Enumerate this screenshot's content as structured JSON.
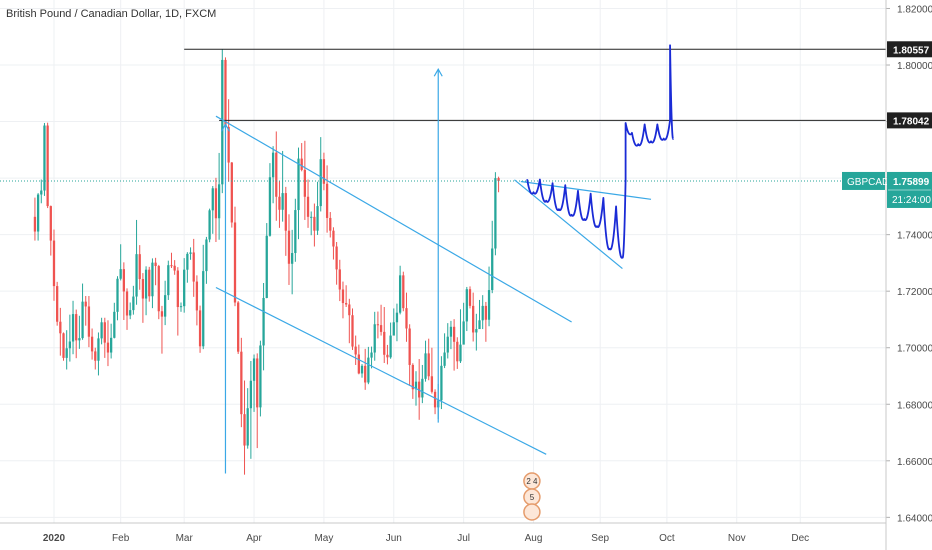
{
  "colors": {
    "background": "#ffffff",
    "grid": "#eef0f3",
    "up": "#26a69a",
    "down": "#ef5350",
    "trendline": "#3aa8e6",
    "projection": "#1a2bd6",
    "level_line": "#222222",
    "axis_text": "#4a4a4a",
    "symbol_badge": "#26a69a",
    "level_badge": "#202020"
  },
  "chart_data": {
    "type": "candlestick",
    "title": "British Pound / Canadian Dollar, 1D, FXCM",
    "y_ticks": [
      1.64,
      1.66,
      1.68,
      1.7,
      1.72,
      1.74,
      1.76,
      1.78,
      1.8,
      1.82
    ],
    "y_tick_labels": [
      "1.64000",
      "1.66000",
      "1.68000",
      "1.70000",
      "1.72000",
      "1.74000",
      "1.76000",
      "1.78000",
      "1.80000",
      "1.82000"
    ],
    "x_tick_labels": [
      "2020",
      "Feb",
      "Mar",
      "Apr",
      "May",
      "Jun",
      "Jul",
      "Aug",
      "Sep",
      "Oct",
      "Nov",
      "Dec"
    ],
    "x_tick_index": [
      6,
      27,
      47,
      69,
      91,
      113,
      135,
      157,
      178,
      199,
      221,
      241
    ],
    "ylim": [
      1.638,
      1.823
    ],
    "x_range": [
      -11,
      268
    ],
    "grid": true,
    "candles": [
      [
        1.7463,
        1.7411,
        1.7531,
        1.7379
      ],
      [
        1.7411,
        1.7542,
        1.7547,
        1.7379
      ],
      [
        1.7542,
        1.7556,
        1.7595,
        1.7511
      ],
      [
        1.7556,
        1.7786,
        1.7795,
        1.7537
      ],
      [
        1.7786,
        1.7501,
        1.7796,
        1.7494
      ],
      [
        1.7501,
        1.7379,
        1.7503,
        1.7326
      ],
      [
        1.7379,
        1.7218,
        1.7418,
        1.7166
      ],
      [
        1.7218,
        1.7092,
        1.7233,
        1.7078
      ],
      [
        1.7092,
        1.7051,
        1.7141,
        1.6972
      ],
      [
        1.7051,
        1.6964,
        1.7054,
        1.6954
      ],
      [
        1.6964,
        1.6998,
        1.7062,
        1.6923
      ],
      [
        1.6998,
        1.7022,
        1.7117,
        1.6951
      ],
      [
        1.7022,
        1.7119,
        1.7166,
        1.6977
      ],
      [
        1.7119,
        1.7026,
        1.7135,
        1.6963
      ],
      [
        1.7026,
        1.7034,
        1.7113,
        1.6996
      ],
      [
        1.7034,
        1.7163,
        1.7227,
        1.7028
      ],
      [
        1.7163,
        1.7146,
        1.7183,
        1.7078
      ],
      [
        1.7146,
        1.7039,
        1.7183,
        1.7002
      ],
      [
        1.7039,
        1.6987,
        1.7068,
        1.6958
      ],
      [
        1.6987,
        1.6954,
        1.7,
        1.6923
      ],
      [
        1.6954,
        1.7033,
        1.7054,
        1.6902
      ],
      [
        1.7033,
        1.709,
        1.7106,
        1.7012
      ],
      [
        1.709,
        1.7018,
        1.7106,
        1.6964
      ],
      [
        1.7018,
        1.6983,
        1.7097,
        1.6935
      ],
      [
        1.6983,
        1.7035,
        1.7085,
        1.6962
      ],
      [
        1.7035,
        1.7127,
        1.7159,
        1.7033
      ],
      [
        1.7127,
        1.7244,
        1.7253,
        1.7097
      ],
      [
        1.7244,
        1.7278,
        1.7366,
        1.7238
      ],
      [
        1.7278,
        1.7199,
        1.7302,
        1.7098
      ],
      [
        1.7199,
        1.7114,
        1.721,
        1.7063
      ],
      [
        1.7114,
        1.7133,
        1.716,
        1.7101
      ],
      [
        1.7133,
        1.7181,
        1.7219,
        1.7117
      ],
      [
        1.7181,
        1.7331,
        1.7452,
        1.7152
      ],
      [
        1.7331,
        1.7243,
        1.7363,
        1.7205
      ],
      [
        1.7243,
        1.7174,
        1.7264,
        1.7088
      ],
      [
        1.7174,
        1.7276,
        1.7288,
        1.7115
      ],
      [
        1.7276,
        1.7182,
        1.7286,
        1.7163
      ],
      [
        1.7182,
        1.7301,
        1.7316,
        1.714
      ],
      [
        1.7301,
        1.7289,
        1.7318,
        1.7221
      ],
      [
        1.7289,
        1.7129,
        1.7293,
        1.7101
      ],
      [
        1.7129,
        1.711,
        1.7148,
        1.6979
      ],
      [
        1.711,
        1.7186,
        1.7237,
        1.708
      ],
      [
        1.7186,
        1.7292,
        1.7308,
        1.7169
      ],
      [
        1.7292,
        1.729,
        1.7336,
        1.7282
      ],
      [
        1.729,
        1.7273,
        1.731,
        1.7258
      ],
      [
        1.7273,
        1.7144,
        1.7285,
        1.7043
      ],
      [
        1.7144,
        1.7147,
        1.716,
        1.7127
      ],
      [
        1.7147,
        1.7276,
        1.7317,
        1.7124
      ],
      [
        1.7276,
        1.7332,
        1.7338,
        1.723
      ],
      [
        1.7332,
        1.7337,
        1.7355,
        1.7311
      ],
      [
        1.7337,
        1.7234,
        1.7385,
        1.718
      ],
      [
        1.7234,
        1.7132,
        1.7256,
        1.7079
      ],
      [
        1.7132,
        1.7005,
        1.7149,
        1.6982
      ],
      [
        1.7005,
        1.7271,
        1.7364,
        1.6995
      ],
      [
        1.7271,
        1.7383,
        1.7392,
        1.7226
      ],
      [
        1.7383,
        1.7486,
        1.7492,
        1.7373
      ],
      [
        1.7486,
        1.7564,
        1.7572,
        1.7403
      ],
      [
        1.7564,
        1.7458,
        1.7601,
        1.7374
      ],
      [
        1.7458,
        1.7578,
        1.7689,
        1.7382
      ],
      [
        1.7578,
        1.8018,
        1.8055,
        1.7547
      ],
      [
        1.8018,
        1.7781,
        1.8027,
        1.7752
      ],
      [
        1.7781,
        1.7655,
        1.7879,
        1.7587
      ],
      [
        1.7655,
        1.7443,
        1.7657,
        1.7425
      ],
      [
        1.7443,
        1.716,
        1.7499,
        1.7147
      ],
      [
        1.716,
        1.6986,
        1.7165,
        1.6978
      ],
      [
        1.6986,
        1.6765,
        1.7035,
        1.6719
      ],
      [
        1.6765,
        1.6654,
        1.6884,
        1.6551
      ],
      [
        1.6654,
        1.6786,
        1.6857,
        1.6643
      ],
      [
        1.6786,
        1.6883,
        1.6953,
        1.6607
      ],
      [
        1.6883,
        1.6962,
        1.6976,
        1.6773
      ],
      [
        1.6962,
        1.6789,
        1.698,
        1.6645
      ],
      [
        1.6789,
        1.7008,
        1.7025,
        1.6757
      ],
      [
        1.7008,
        1.7176,
        1.7229,
        1.692
      ],
      [
        1.7176,
        1.7396,
        1.7441,
        1.7175
      ],
      [
        1.7396,
        1.7603,
        1.7653,
        1.7393
      ],
      [
        1.7603,
        1.769,
        1.7713,
        1.7511
      ],
      [
        1.769,
        1.7534,
        1.7765,
        1.7449
      ],
      [
        1.7534,
        1.7488,
        1.7588,
        1.7424
      ],
      [
        1.7488,
        1.7547,
        1.7696,
        1.7446
      ],
      [
        1.7547,
        1.7414,
        1.7569,
        1.7325
      ],
      [
        1.7414,
        1.7297,
        1.7472,
        1.7222
      ],
      [
        1.7297,
        1.7335,
        1.7417,
        1.7189
      ],
      [
        1.7335,
        1.7487,
        1.7527,
        1.7304
      ],
      [
        1.7487,
        1.7669,
        1.7708,
        1.7384
      ],
      [
        1.7669,
        1.7629,
        1.7724,
        1.7624
      ],
      [
        1.7629,
        1.7534,
        1.7732,
        1.7452
      ],
      [
        1.7534,
        1.7463,
        1.7595,
        1.7424
      ],
      [
        1.7463,
        1.7463,
        1.7482,
        1.7398
      ],
      [
        1.7463,
        1.7414,
        1.751,
        1.7358
      ],
      [
        1.7414,
        1.7501,
        1.7587,
        1.7399
      ],
      [
        1.7501,
        1.7667,
        1.7745,
        1.7482
      ],
      [
        1.7667,
        1.758,
        1.769,
        1.7557
      ],
      [
        1.758,
        1.7459,
        1.7645,
        1.7407
      ],
      [
        1.7459,
        1.7414,
        1.748,
        1.739
      ],
      [
        1.7414,
        1.7358,
        1.7426,
        1.7312
      ],
      [
        1.7358,
        1.7277,
        1.7374,
        1.7223
      ],
      [
        1.7277,
        1.7206,
        1.7311,
        1.7165
      ],
      [
        1.7206,
        1.7158,
        1.7234,
        1.7104
      ],
      [
        1.7158,
        1.7153,
        1.7221,
        1.7144
      ],
      [
        1.7153,
        1.7115,
        1.7173,
        1.7016
      ],
      [
        1.7115,
        1.7004,
        1.7139,
        1.6992
      ],
      [
        1.7004,
        1.6976,
        1.7043,
        1.6939
      ],
      [
        1.6976,
        1.6909,
        1.7011,
        1.6906
      ],
      [
        1.6909,
        1.6936,
        1.6942,
        1.6894
      ],
      [
        1.6936,
        1.6877,
        1.6996,
        1.6851
      ],
      [
        1.6877,
        1.6965,
        1.7003,
        1.6871
      ],
      [
        1.6965,
        1.6983,
        1.7004,
        1.6927
      ],
      [
        1.6983,
        1.7083,
        1.7127,
        1.6954
      ],
      [
        1.7083,
        1.708,
        1.7128,
        1.7033
      ],
      [
        1.708,
        1.7056,
        1.7152,
        1.7043
      ],
      [
        1.7056,
        1.6975,
        1.7144,
        1.6946
      ],
      [
        1.6975,
        1.6966,
        1.701,
        1.6941
      ],
      [
        1.6966,
        1.7043,
        1.7089,
        1.6961
      ],
      [
        1.7043,
        1.709,
        1.7139,
        1.7078
      ],
      [
        1.709,
        1.7124,
        1.7156,
        1.7023
      ],
      [
        1.7124,
        1.7256,
        1.729,
        1.7118
      ],
      [
        1.7256,
        1.714,
        1.7269,
        1.7129
      ],
      [
        1.714,
        1.7068,
        1.7195,
        1.7021
      ],
      [
        1.7068,
        1.6939,
        1.7083,
        1.6865
      ],
      [
        1.6939,
        1.6853,
        1.6945,
        1.6819
      ],
      [
        1.6853,
        1.688,
        1.6917,
        1.6795
      ],
      [
        1.688,
        1.6824,
        1.696,
        1.6745
      ],
      [
        1.6824,
        1.689,
        1.6939,
        1.6804
      ],
      [
        1.689,
        1.698,
        1.7025,
        1.688
      ],
      [
        1.698,
        1.6899,
        1.7032,
        1.6885
      ],
      [
        1.6899,
        1.6844,
        1.7,
        1.6838
      ],
      [
        1.6844,
        1.6789,
        1.6853,
        1.6765
      ],
      [
        1.6789,
        1.6814,
        1.6872,
        1.6748
      ],
      [
        1.6814,
        1.6936,
        1.697,
        1.6783
      ],
      [
        1.6936,
        1.6983,
        1.7051,
        1.6928
      ],
      [
        1.6983,
        1.7039,
        1.7087,
        1.6962
      ],
      [
        1.7039,
        1.7074,
        1.7095,
        1.6995
      ],
      [
        1.7074,
        1.7021,
        1.7101,
        1.6919
      ],
      [
        1.7021,
        1.6952,
        1.7037,
        1.6925
      ],
      [
        1.6952,
        1.7011,
        1.7136,
        1.6946
      ],
      [
        1.7011,
        1.7093,
        1.7159,
        1.7078
      ],
      [
        1.7093,
        1.7207,
        1.7215,
        1.7059
      ],
      [
        1.7207,
        1.7148,
        1.7217,
        1.7139
      ],
      [
        1.7148,
        1.7054,
        1.7195,
        1.7022
      ],
      [
        1.7054,
        1.7066,
        1.712,
        1.699
      ],
      [
        1.7066,
        1.7097,
        1.7169,
        1.7082
      ],
      [
        1.7097,
        1.7148,
        1.7186,
        1.7066
      ],
      [
        1.7148,
        1.7099,
        1.7162,
        1.7021
      ],
      [
        1.7099,
        1.7204,
        1.7287,
        1.7076
      ],
      [
        1.7204,
        1.7351,
        1.7449,
        1.7193
      ],
      [
        1.7351,
        1.76,
        1.7621,
        1.7327
      ],
      [
        1.76,
        1.759,
        1.7605,
        1.755
      ]
    ],
    "levels": [
      {
        "label": "1.80557",
        "value": 1.80557
      },
      {
        "label": "1.78042",
        "value": 1.78042
      }
    ],
    "last_price": {
      "symbol": "GBPCAD",
      "value": 1.75899,
      "label": "1.75899",
      "countdown": "21:24:00"
    },
    "trendlines": [
      {
        "x1": 57,
        "y1": 1.7819,
        "x2": 169,
        "y2": 1.7091
      },
      {
        "x1": 57,
        "y1": 1.7213,
        "x2": 161,
        "y2": 1.6623
      },
      {
        "x1": 151,
        "y1": 1.7594,
        "x2": 185,
        "y2": 1.728
      },
      {
        "x1": 153,
        "y1": 1.7588,
        "x2": 194,
        "y2": 1.7525
      }
    ],
    "arrows": [
      {
        "x": 60,
        "y_from": 1.6555,
        "y_to": 1.779
      },
      {
        "x": 127,
        "y_from": 1.6735,
        "y_to": 1.7985
      }
    ],
    "projection_path": [
      [
        155,
        1.7596
      ],
      [
        157,
        1.755
      ],
      [
        159,
        1.7595
      ],
      [
        161,
        1.752
      ],
      [
        163,
        1.7582
      ],
      [
        165,
        1.749
      ],
      [
        167,
        1.7575
      ],
      [
        169,
        1.747
      ],
      [
        171,
        1.7555
      ],
      [
        173,
        1.7455
      ],
      [
        175,
        1.7545
      ],
      [
        177,
        1.743
      ],
      [
        179,
        1.753
      ],
      [
        181,
        1.735
      ],
      [
        183,
        1.75
      ],
      [
        185,
        1.732
      ],
      [
        186,
        1.7595
      ],
      [
        186,
        1.7795
      ],
      [
        188,
        1.776
      ],
      [
        190,
        1.772
      ],
      [
        192,
        1.779
      ],
      [
        194,
        1.773
      ],
      [
        196,
        1.779
      ],
      [
        198,
        1.774
      ],
      [
        200,
        1.7805
      ],
      [
        200,
        1.807
      ],
      [
        201,
        1.774
      ]
    ],
    "event_badges": [
      {
        "text": "2",
        "x": 156
      },
      {
        "text": "4",
        "x": 159
      },
      {
        "text": "5",
        "x": 157
      }
    ]
  }
}
